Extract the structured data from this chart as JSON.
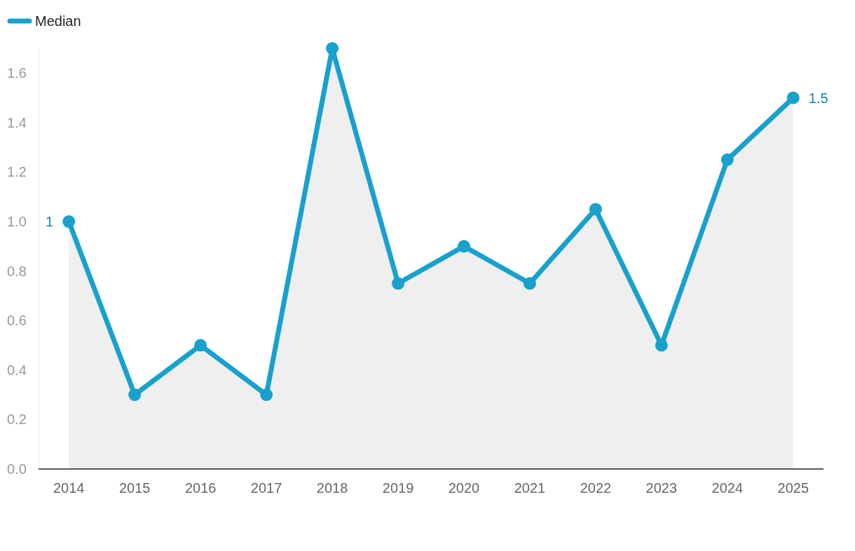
{
  "chart_data": {
    "type": "area",
    "categories": [
      "2014",
      "2015",
      "2016",
      "2017",
      "2018",
      "2019",
      "2020",
      "2021",
      "2022",
      "2023",
      "2024",
      "2025"
    ],
    "series": [
      {
        "name": "Median",
        "color": "#18a1cd",
        "values": [
          1,
          0.3,
          0.5,
          0.3,
          1.7,
          0.75,
          0.9,
          0.75,
          1.05,
          0.5,
          1.25,
          1.5
        ],
        "value_labels": [
          "1",
          null,
          null,
          null,
          null,
          null,
          null,
          null,
          null,
          null,
          null,
          "1.5"
        ]
      }
    ],
    "yticks": [
      {
        "value": 0,
        "label": "0.0"
      },
      {
        "value": 0.2,
        "label": "0.2"
      },
      {
        "value": 0.4,
        "label": "0.4"
      },
      {
        "value": 0.6,
        "label": "0.6"
      },
      {
        "value": 0.8,
        "label": "0.8"
      },
      {
        "value": 1,
        "label": "1.0"
      },
      {
        "value": 1.2,
        "label": "1.2"
      },
      {
        "value": 1.4,
        "label": "1.4"
      },
      {
        "value": 1.6,
        "label": "1.6"
      }
    ],
    "ylim": [
      0,
      1.7
    ],
    "legend": "top left",
    "marker": "circle",
    "line_style": "solid"
  }
}
